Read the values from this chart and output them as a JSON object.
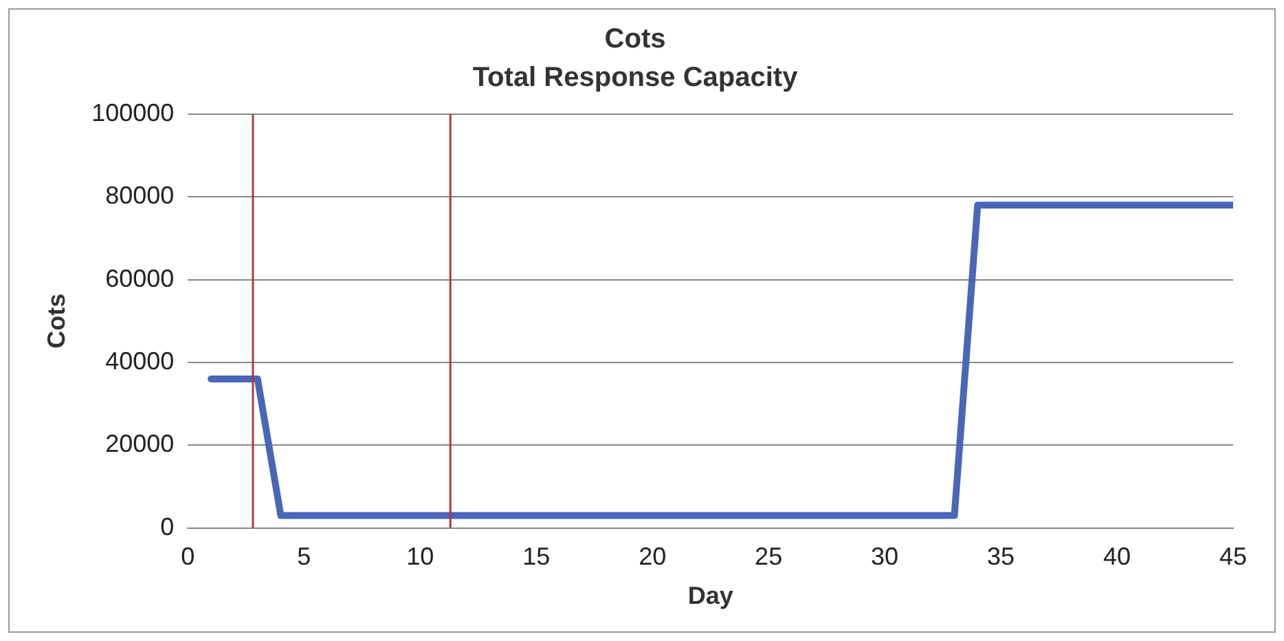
{
  "chart_data": {
    "type": "line",
    "title": "Cots",
    "subtitle": "Total Response Capacity",
    "xlabel": "Day",
    "ylabel": "Cots",
    "x": [
      1,
      3,
      4,
      33,
      34,
      45
    ],
    "series": [
      {
        "color": "#4a66b8",
        "values": [
          36000,
          36000,
          3000,
          3000,
          78000,
          78000
        ]
      }
    ],
    "xlim": [
      0,
      45
    ],
    "xticks": [
      0,
      5,
      10,
      15,
      20,
      25,
      30,
      35,
      40,
      45
    ],
    "ylim": [
      0,
      100000
    ],
    "yticks": [
      0,
      20000,
      40000,
      60000,
      80000,
      100000
    ],
    "grid": "y",
    "legend": false,
    "marker": "none",
    "line_style": "solid",
    "ref_lines": [
      {
        "axis": "x",
        "value": 2.8,
        "color": "#b03a3a"
      },
      {
        "axis": "x",
        "value": 11.3,
        "color": "#b03a3a"
      }
    ]
  }
}
